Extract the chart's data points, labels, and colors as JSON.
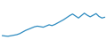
{
  "x": [
    0,
    1,
    2,
    3,
    4,
    5,
    6,
    7,
    8,
    9,
    10,
    11,
    12,
    13,
    14,
    15,
    16,
    17,
    18,
    19,
    20,
    21,
    22,
    23,
    24,
    25,
    26,
    27,
    28,
    29,
    30,
    31,
    32,
    33,
    34,
    35
  ],
  "y": [
    3.0,
    2.5,
    2.2,
    2.8,
    3.5,
    4.2,
    5.5,
    7.5,
    9.5,
    11.0,
    12.5,
    14.0,
    14.8,
    14.2,
    13.5,
    15.0,
    16.5,
    15.5,
    17.0,
    19.0,
    21.0,
    23.0,
    25.5,
    28.0,
    30.0,
    27.5,
    25.0,
    28.0,
    31.0,
    28.5,
    26.5,
    28.5,
    30.5,
    27.0,
    25.0,
    26.0
  ],
  "line_color": "#2e8bc0",
  "line_width": 0.9,
  "bg_color": "#ffffff",
  "ylim": [
    0,
    45
  ],
  "xlim": [
    0,
    35
  ]
}
